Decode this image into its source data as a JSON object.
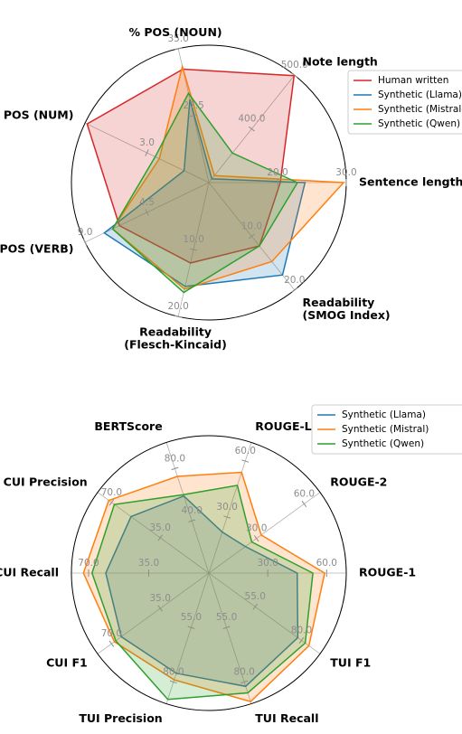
{
  "chart_data": [
    {
      "type": "radar",
      "categories": [
        "Sentence length",
        "Note length",
        "% POS (NOUN)",
        "% POS (NUM)",
        "% POS (VERB)",
        "Readability\n(Flesch-Kincaid)",
        "Readability\n(SMOG Index)"
      ],
      "axis_lims": [
        [
          10,
          30
        ],
        [
          300,
          500
        ],
        [
          20,
          35
        ],
        [
          0,
          6
        ],
        [
          0,
          9
        ],
        [
          0,
          20
        ],
        [
          0,
          20
        ]
      ],
      "axis_ticks": [
        [
          {
            "value": 20,
            "label": "20.0"
          },
          {
            "value": 30,
            "label": "30.0"
          }
        ],
        [
          {
            "value": 400,
            "label": "400.0"
          },
          {
            "value": 500,
            "label": "500.0"
          }
        ],
        [
          {
            "value": 27.5,
            "label": "27.5"
          },
          {
            "value": 35,
            "label": "35.0"
          }
        ],
        [
          {
            "value": 3,
            "label": "3.0"
          }
        ],
        [
          {
            "value": 4.5,
            "label": "4.5"
          },
          {
            "value": 9,
            "label": "9.0"
          }
        ],
        [
          {
            "value": 10,
            "label": "10.0"
          },
          {
            "value": 20,
            "label": "20.0"
          }
        ],
        [
          {
            "value": 10,
            "label": "10.0"
          },
          {
            "value": 20,
            "label": "20.0"
          }
        ]
      ],
      "grid": true,
      "legend": "upper right",
      "series": [
        {
          "name": "Human written",
          "color": "#d62728",
          "values": [
            20.4,
            499,
            32.7,
            5.9,
            6.5,
            12,
            11.8
          ]
        },
        {
          "name": "Synthetic (Llama)",
          "color": "#1f77b4",
          "values": [
            24,
            307,
            29.3,
            1.2,
            7.6,
            15.5,
            17.2
          ]
        },
        {
          "name": "Synthetic (Mistral)",
          "color": "#ff7f0e",
          "values": [
            29.6,
            313,
            33,
            2.4,
            7,
            15.9,
            14.7
          ]
        },
        {
          "name": "Synthetic (Qwen)",
          "color": "#2ca02c",
          "values": [
            22.9,
            355,
            30,
            2.6,
            7,
            16.4,
            11.8
          ]
        }
      ]
    },
    {
      "type": "radar",
      "categories": [
        "ROUGE-1",
        "ROUGE-2",
        "ROUGE-L",
        "BERTScore",
        "CUI Precision",
        "CUI Recall",
        "CUI F1",
        "TUI Precision",
        "TUI Recall",
        "TUI F1"
      ],
      "axis_lims": [
        [
          0,
          70
        ],
        [
          0,
          70
        ],
        [
          0,
          70
        ],
        [
          0,
          100
        ],
        [
          0,
          80
        ],
        [
          0,
          80
        ],
        [
          0,
          80
        ],
        [
          30,
          90
        ],
        [
          30,
          90
        ],
        [
          30,
          90
        ]
      ],
      "axis_ticks": [
        [
          {
            "value": 30,
            "label": "30.0"
          },
          {
            "value": 60,
            "label": "60.0"
          }
        ],
        [
          {
            "value": 30,
            "label": "30.0"
          },
          {
            "value": 60,
            "label": "60.0"
          }
        ],
        [
          {
            "value": 30,
            "label": "30.0"
          },
          {
            "value": 60,
            "label": "60.0"
          }
        ],
        [
          {
            "value": 40,
            "label": "40.0"
          },
          {
            "value": 80,
            "label": "80.0"
          }
        ],
        [
          {
            "value": 35,
            "label": "35.0"
          },
          {
            "value": 70,
            "label": "70.0"
          }
        ],
        [
          {
            "value": 35,
            "label": "35.0"
          },
          {
            "value": 70,
            "label": "70.0"
          }
        ],
        [
          {
            "value": 35,
            "label": "35.0"
          },
          {
            "value": 70,
            "label": "70.0"
          }
        ],
        [
          {
            "value": 55,
            "label": "55.0"
          },
          {
            "value": 80,
            "label": "80.0"
          }
        ],
        [
          {
            "value": 55,
            "label": "55.0"
          },
          {
            "value": 80,
            "label": "80.0"
          }
        ],
        [
          {
            "value": 55,
            "label": "55.0"
          },
          {
            "value": 80,
            "label": "80.0"
          }
        ]
      ],
      "grid": true,
      "legend": "upper right",
      "series": [
        {
          "name": "Synthetic (Llama)",
          "color": "#1f77b4",
          "values": [
            45,
            23,
            22,
            59,
            56,
            60,
            63,
            76,
            82,
            78
          ]
        },
        {
          "name": "Synthetic (Mistral)",
          "color": "#ff7f0e",
          "values": [
            59,
            33,
            54,
            74,
            72,
            73,
            68,
            79,
            89,
            84
          ]
        },
        {
          "name": "Synthetic (Qwen)",
          "color": "#2ca02c",
          "values": [
            53,
            27,
            47,
            60,
            68,
            68,
            67,
            88,
            85,
            82
          ]
        }
      ]
    }
  ]
}
